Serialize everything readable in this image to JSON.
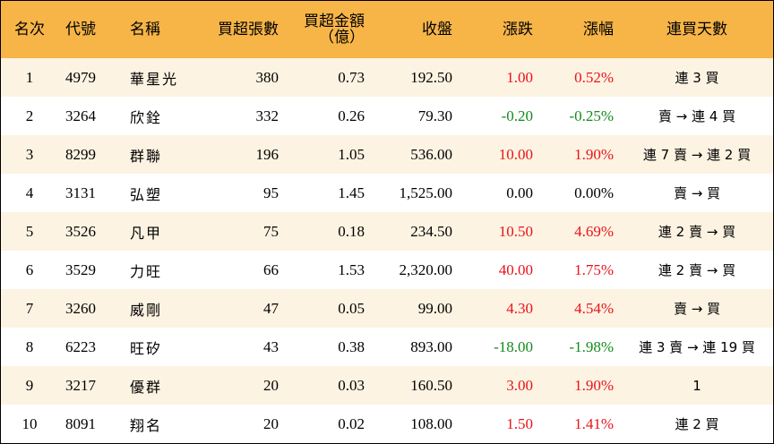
{
  "headers": {
    "rank": "名次",
    "code": "代號",
    "name": "名稱",
    "net_buy_lots": "買超張數",
    "net_buy_amount_line1": "買超金額",
    "net_buy_amount_line2": "（億）",
    "close": "收盤",
    "change": "漲跌",
    "change_pct": "漲幅",
    "streak": "連買天數"
  },
  "colors": {
    "header_bg": "#f7b548",
    "row_alt_bg": "#fdf3e2",
    "up": "#e8131b",
    "down": "#148a1c"
  },
  "rows": [
    {
      "rank": "1",
      "code": "4979",
      "name": "華星光",
      "lots": "380",
      "amount": "0.73",
      "close": "192.50",
      "change": "1.00",
      "change_pct": "0.52%",
      "trend": "up",
      "streak": "連 3 買"
    },
    {
      "rank": "2",
      "code": "3264",
      "name": "欣銓",
      "lots": "332",
      "amount": "0.26",
      "close": "79.30",
      "change": "-0.20",
      "change_pct": "-0.25%",
      "trend": "down",
      "streak": "賣 → 連 4 買"
    },
    {
      "rank": "3",
      "code": "8299",
      "name": "群聯",
      "lots": "196",
      "amount": "1.05",
      "close": "536.00",
      "change": "10.00",
      "change_pct": "1.90%",
      "trend": "up",
      "streak": "連 7 賣 → 連 2 買"
    },
    {
      "rank": "4",
      "code": "3131",
      "name": "弘塑",
      "lots": "95",
      "amount": "1.45",
      "close": "1,525.00",
      "change": "0.00",
      "change_pct": "0.00%",
      "trend": "flat",
      "streak": "賣 → 買"
    },
    {
      "rank": "5",
      "code": "3526",
      "name": "凡甲",
      "lots": "75",
      "amount": "0.18",
      "close": "234.50",
      "change": "10.50",
      "change_pct": "4.69%",
      "trend": "up",
      "streak": "連 2 賣 → 買"
    },
    {
      "rank": "6",
      "code": "3529",
      "name": "力旺",
      "lots": "66",
      "amount": "1.53",
      "close": "2,320.00",
      "change": "40.00",
      "change_pct": "1.75%",
      "trend": "up",
      "streak": "連 2 賣 → 買"
    },
    {
      "rank": "7",
      "code": "3260",
      "name": "威剛",
      "lots": "47",
      "amount": "0.05",
      "close": "99.00",
      "change": "4.30",
      "change_pct": "4.54%",
      "trend": "up",
      "streak": "賣 → 買"
    },
    {
      "rank": "8",
      "code": "6223",
      "name": "旺矽",
      "lots": "43",
      "amount": "0.38",
      "close": "893.00",
      "change": "-18.00",
      "change_pct": "-1.98%",
      "trend": "down",
      "streak": "連 3 賣 → 連 19 買"
    },
    {
      "rank": "9",
      "code": "3217",
      "name": "優群",
      "lots": "20",
      "amount": "0.03",
      "close": "160.50",
      "change": "3.00",
      "change_pct": "1.90%",
      "trend": "up",
      "streak": "1"
    },
    {
      "rank": "10",
      "code": "8091",
      "name": "翔名",
      "lots": "20",
      "amount": "0.02",
      "close": "108.00",
      "change": "1.50",
      "change_pct": "1.41%",
      "trend": "up",
      "streak": "連 2 買"
    }
  ]
}
